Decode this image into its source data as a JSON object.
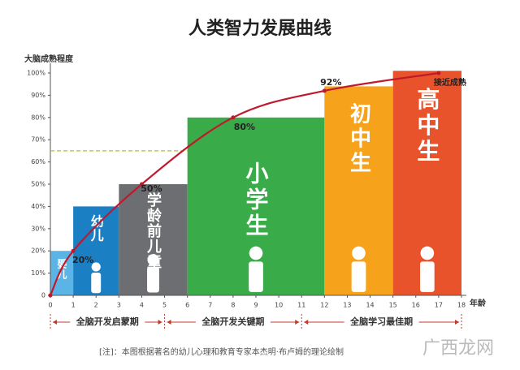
{
  "chart_data": {
    "type": "bar",
    "title": "人类智力发展曲线",
    "y_label": "大脑成熟程度",
    "x_label": "年龄",
    "xlim": [
      0,
      18
    ],
    "xticks": [
      0,
      1,
      2,
      3,
      4,
      5,
      6,
      7,
      8,
      9,
      10,
      11,
      12,
      13,
      14,
      15,
      16,
      17,
      18
    ],
    "ylim": [
      0,
      100
    ],
    "yticks": [
      {
        "value": 0,
        "label": "0"
      },
      {
        "value": 10,
        "label": "10%"
      },
      {
        "value": 20,
        "label": "20%"
      },
      {
        "value": 30,
        "label": "30%"
      },
      {
        "value": 40,
        "label": "40%"
      },
      {
        "value": 50,
        "label": "50%"
      },
      {
        "value": 60,
        "label": "60%"
      },
      {
        "value": 70,
        "label": "70%"
      },
      {
        "value": 80,
        "label": "80%"
      },
      {
        "value": 90,
        "label": "90%"
      },
      {
        "value": 100,
        "label": "100%"
      }
    ],
    "stages": [
      {
        "name": "婴儿",
        "start": 0,
        "end": 1,
        "value": 20,
        "color": "#5ab4e5"
      },
      {
        "name": "幼儿",
        "start": 1,
        "end": 3,
        "value": 40,
        "color": "#1b7fc4"
      },
      {
        "name": "学龄前儿童",
        "start": 3,
        "end": 6,
        "value": 50,
        "color": "#6d6e71"
      },
      {
        "name": "小学生",
        "start": 6,
        "end": 12,
        "value": 80,
        "color": "#3aab49"
      },
      {
        "name": "初中生",
        "start": 12,
        "end": 15,
        "value": 94,
        "color": "#f7a21b"
      },
      {
        "name": "高中生",
        "start": 15,
        "end": 18,
        "value": 101,
        "color": "#e8532b"
      }
    ],
    "curve": {
      "color": "#c0192c",
      "x": [
        0,
        1,
        4,
        8,
        12,
        17
      ],
      "values": [
        0,
        20,
        50,
        80,
        92,
        100
      ],
      "value_labels": [
        null,
        "20%",
        "50%",
        "80%",
        "92%",
        "接近成熟"
      ]
    },
    "reference_line": {
      "value": 65,
      "color": "#a9c23f"
    },
    "phases": [
      {
        "name": "全脑开发启蒙期",
        "start": 0,
        "end": 5
      },
      {
        "name": "全脑开发关键期",
        "start": 5,
        "end": 11
      },
      {
        "name": "全脑学习最佳期",
        "start": 11,
        "end": 18
      }
    ],
    "note": "[注]：本图根据著名的幼儿心理和教育专家本杰明·布卢姆的理论绘制",
    "watermark": "广西龙网"
  }
}
